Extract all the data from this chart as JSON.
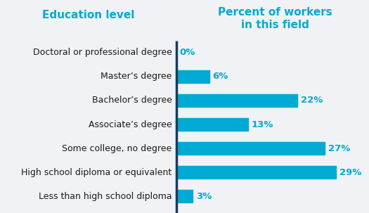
{
  "categories": [
    "Doctoral or professional degree",
    "Master’s degree",
    "Bachelor’s degree",
    "Associate’s degree",
    "Some college, no degree",
    "High school diploma or equivalent",
    "Less than high school diploma"
  ],
  "values": [
    0,
    6,
    22,
    13,
    27,
    29,
    3
  ],
  "bar_color": "#00aad4",
  "divider_color": "#1a3a5c",
  "value_label_color": "#00aad4",
  "left_header": "Education level",
  "right_header": "Percent of workers\nin this field",
  "header_color": "#00aad4",
  "background_color": "#f0f2f5",
  "bar_label_fontsize": 9.5,
  "category_fontsize": 9.0,
  "header_fontsize": 11,
  "xlim_max": 35,
  "bar_height": 0.52
}
